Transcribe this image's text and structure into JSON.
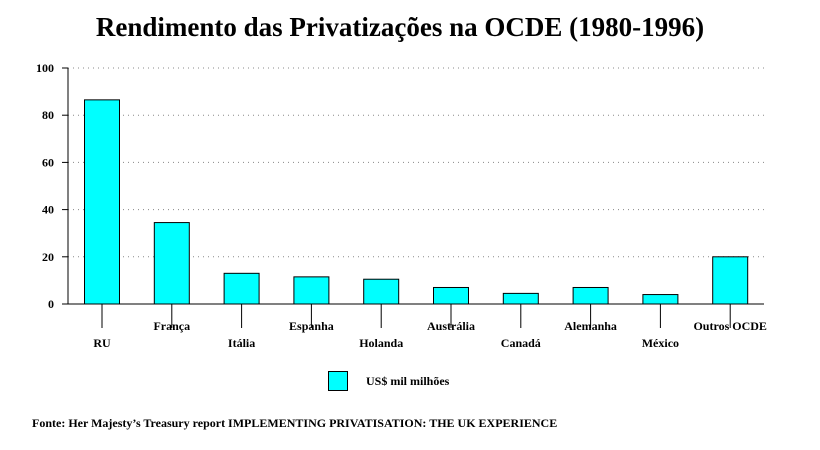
{
  "chart_data": {
    "type": "bar",
    "title": "Rendimento das Privatizações na OCDE (1980-1996)",
    "categories": [
      "RU",
      "França",
      "Itália",
      "Espanha",
      "Holanda",
      "Austrália",
      "Canadá",
      "Alemanha",
      "México",
      "Outros OCDE"
    ],
    "series": [
      {
        "name": "US$ mil milhões",
        "values": [
          86.5,
          34.5,
          13,
          11.5,
          10.5,
          7,
          4.5,
          7,
          4,
          20
        ],
        "color": "#00ffff"
      }
    ],
    "xlabel": "",
    "ylabel": "",
    "ylim": [
      0,
      100
    ],
    "yticks": [
      0,
      20,
      40,
      60,
      80,
      100
    ],
    "grid": "horizontal dotted",
    "legend": "bottom-center",
    "bar_color": "#00ffff",
    "source": "Fonte: Her Majesty’s Treasury report IMPLEMENTING PRIVATISATION: THE UK EXPERIENCE"
  }
}
